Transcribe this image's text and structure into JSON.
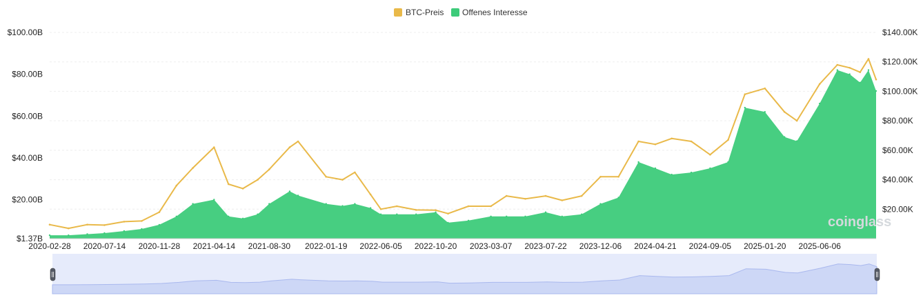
{
  "chart_data": {
    "type": "area",
    "legend_position": "top-center",
    "legend": [
      {
        "name": "BTC-Preis",
        "color": "#E9B949"
      },
      {
        "name": "Offenes Interesse",
        "color": "#3DCB7A"
      }
    ],
    "grid": true,
    "x_ticks": [
      "2020-02-28",
      "2020-07-14",
      "2020-11-28",
      "2021-04-14",
      "2021-08-30",
      "2022-01-19",
      "2022-06-05",
      "2022-10-20",
      "2023-03-07",
      "2023-07-22",
      "2023-12-06",
      "2024-04-21",
      "2024-09-05",
      "2025-01-20",
      "2025-06-06"
    ],
    "y_left": {
      "ticks": [
        "$100.00B",
        "$80.00B",
        "$60.00B",
        "$40.00B",
        "$20.00B",
        "$1.37B"
      ],
      "min": 1.37,
      "max": 100,
      "unit": "B USD"
    },
    "y_right": {
      "ticks": [
        "$140.00K",
        "$120.00K",
        "$100.00K",
        "$80.00K",
        "$60.00K",
        "$40.00K",
        "$20.00K"
      ],
      "min": 0,
      "max": 140,
      "unit": "K USD"
    },
    "x": [
      "2020-02-28",
      "2020-04-15",
      "2020-06-01",
      "2020-07-14",
      "2020-09-01",
      "2020-10-15",
      "2020-11-28",
      "2021-01-10",
      "2021-02-20",
      "2021-04-14",
      "2021-05-20",
      "2021-06-25",
      "2021-08-01",
      "2021-08-30",
      "2021-10-20",
      "2021-11-10",
      "2022-01-19",
      "2022-03-01",
      "2022-04-01",
      "2022-05-10",
      "2022-06-05",
      "2022-07-15",
      "2022-09-01",
      "2022-10-20",
      "2022-11-20",
      "2023-01-10",
      "2023-03-07",
      "2023-04-15",
      "2023-06-01",
      "2023-07-22",
      "2023-09-01",
      "2023-10-20",
      "2023-12-06",
      "2024-01-20",
      "2024-03-10",
      "2024-04-21",
      "2024-06-01",
      "2024-07-20",
      "2024-09-05",
      "2024-10-20",
      "2024-12-01",
      "2025-01-20",
      "2025-03-10",
      "2025-04-10",
      "2025-06-06",
      "2025-07-20",
      "2025-08-20",
      "2025-09-15",
      "2025-10-06",
      "2025-10-25"
    ],
    "series": [
      {
        "name": "BTC-Preis",
        "axis": "right",
        "color": "#E9B949",
        "values": [
          9.5,
          7,
          9.5,
          9.2,
          11.5,
          12,
          18,
          36,
          48,
          62,
          37,
          34,
          40,
          47,
          62,
          66,
          42,
          40,
          45,
          30,
          20,
          22,
          19.5,
          19.3,
          17,
          22,
          22,
          29,
          27,
          29,
          26,
          29,
          42,
          42,
          66,
          64,
          68,
          66,
          57,
          67,
          98,
          102,
          86,
          80,
          105,
          118,
          116,
          113,
          122,
          108
        ]
      },
      {
        "name": "Offenes Interesse",
        "axis": "left",
        "color": "#3DCB7A",
        "values": [
          3,
          3,
          3.5,
          4,
          5,
          6,
          8,
          12,
          18,
          20,
          12,
          11,
          13,
          18,
          24,
          22,
          18,
          17,
          18,
          16,
          13,
          13,
          13,
          14,
          9,
          10,
          12,
          12,
          12,
          14,
          12,
          13,
          18,
          21,
          38,
          35,
          32,
          33,
          35,
          38,
          64,
          62,
          50,
          48,
          66,
          82,
          80,
          76,
          82,
          72
        ]
      }
    ]
  },
  "watermark": "coinglass"
}
